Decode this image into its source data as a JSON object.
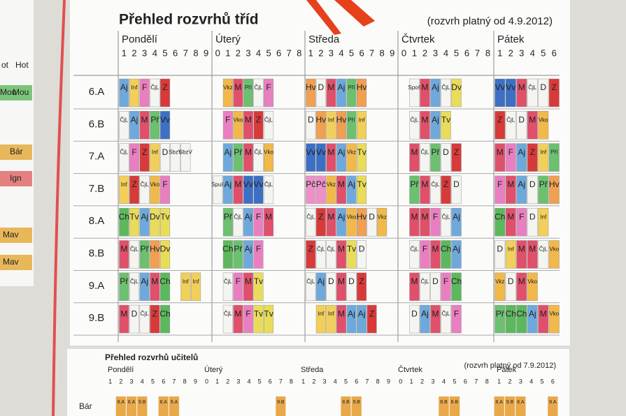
{
  "sheet": {
    "title": "Přehled rozvrhů tříd",
    "subtitle": "(rozvrh platný od 4.9.2012)",
    "days": [
      {
        "name": "Pondělí",
        "periods": [
          "1",
          "2",
          "3",
          "4",
          "5",
          "6",
          "7",
          "8",
          "9"
        ]
      },
      {
        "name": "Úterý",
        "periods": [
          "0",
          "1",
          "2",
          "3",
          "4",
          "5",
          "6",
          "7",
          "8"
        ]
      },
      {
        "name": "Středa",
        "periods": [
          "1",
          "2",
          "3",
          "4",
          "5",
          "6",
          "7",
          "8",
          "9"
        ]
      },
      {
        "name": "Čtvrtek",
        "periods": [
          "0",
          "1",
          "2",
          "3",
          "4",
          "5",
          "6",
          "7",
          "8"
        ]
      },
      {
        "name": "Pátek",
        "periods": [
          "1",
          "2",
          "3",
          "4",
          "5",
          "6"
        ]
      }
    ],
    "rows": [
      {
        "class": "6.A",
        "days": [
          [
            "Aj",
            "Inf",
            "F",
            "ČjL",
            "Z",
            null,
            null,
            null,
            null
          ],
          [
            null,
            "Vkz",
            "M",
            "Pří",
            "ČjL",
            "F",
            null,
            null,
            null
          ],
          [
            "Hv",
            "D",
            "M",
            "Aj",
            "Pří",
            "Hv",
            null,
            null,
            null
          ],
          [
            null,
            "Spoš",
            "M",
            "Aj",
            "ČjL",
            "Dv",
            null,
            null,
            null
          ],
          [
            "Vv",
            "Vv",
            "M",
            "ČjL",
            "D",
            "Z"
          ]
        ]
      },
      {
        "class": "6.B",
        "days": [
          [
            "ČjL",
            "Aj",
            "M",
            "Př",
            "Vv",
            null,
            null,
            null,
            null
          ],
          [
            null,
            "F",
            "Vko",
            "M",
            "Z",
            "ČjL",
            null,
            null,
            null
          ],
          [
            "D",
            "Hv",
            "Inf",
            "Hv",
            "Pří",
            "Inf",
            null,
            null,
            null
          ],
          [
            null,
            "ČjL",
            "M",
            "Aj",
            "Tv",
            null,
            null,
            null,
            null
          ],
          [
            "Z",
            "ČjL",
            "D",
            "M",
            "Vko",
            null
          ]
        ]
      },
      {
        "class": "7.A",
        "days": [
          [
            "ČjL",
            "F",
            "Z",
            "Inf",
            "D",
            "SbzV",
            "SbzV",
            null,
            null
          ],
          [
            null,
            "Aj",
            "Př",
            "M",
            "ČjL",
            "Vko",
            null,
            null,
            null
          ],
          [
            "Vv",
            "Vv",
            "M",
            "Aj",
            "Vkz",
            "Tv",
            null,
            null,
            null
          ],
          [
            null,
            "M",
            "ČjL",
            "Př",
            "D",
            "Z",
            null,
            null,
            null
          ],
          [
            "M",
            "F",
            "Aj",
            "Z",
            "Inf",
            "Pří"
          ]
        ]
      },
      {
        "class": "7.B",
        "days": [
          [
            "Inf",
            "Z",
            "ČjL",
            "Vko",
            "F",
            null,
            null,
            null,
            null
          ],
          [
            "Spuš",
            "Aj",
            "M",
            "Vv",
            "Vv",
            "ČjL",
            null,
            null,
            null
          ],
          [
            "Pč",
            "Pč",
            "Vkz",
            "M",
            "Aj",
            "Tv",
            null,
            null,
            null
          ],
          [
            null,
            "Př",
            "M",
            "ČjL",
            "Z",
            "D",
            null,
            null,
            null
          ],
          [
            "F",
            "M",
            "Aj",
            "D",
            "Př",
            "Hv"
          ]
        ]
      },
      {
        "class": "8.A",
        "days": [
          [
            "Ch",
            "Tv",
            "Aj",
            "Dv",
            "Tv",
            null,
            null,
            null,
            null
          ],
          [
            null,
            "Př",
            "ČjL",
            "Aj",
            "F",
            "M",
            null,
            null,
            null
          ],
          [
            "ČjL",
            "Z",
            "M",
            "Aj",
            "Vko",
            "Hv",
            "D",
            "Vkz",
            null
          ],
          [
            null,
            "M",
            "M",
            "F",
            "ČjL",
            "Aj",
            null,
            null,
            null
          ],
          [
            "Ch",
            "M",
            "F",
            "D",
            "Inf",
            null
          ]
        ]
      },
      {
        "class": "8.B",
        "days": [
          [
            "M",
            "ČjL",
            "Př",
            "Hv",
            "Dv",
            null,
            null,
            null,
            null
          ],
          [
            null,
            "Ch",
            "Př",
            "Aj",
            "F",
            null,
            null,
            null,
            null
          ],
          [
            "Z",
            "ČjL",
            "ČjL",
            "M",
            "Tv",
            "D",
            null,
            null,
            null
          ],
          [
            null,
            "ČjL",
            "F",
            "M",
            "Ch",
            "Aj",
            null,
            null,
            null
          ],
          [
            "D",
            "Inf",
            "M",
            "M",
            "ČjL",
            "Vko"
          ]
        ]
      },
      {
        "class": "9.A",
        "days": [
          [
            "Př",
            "ČjL",
            "Aj",
            "M",
            "Ch",
            null,
            "Inf",
            "Inf",
            null
          ],
          [
            null,
            "ČjL",
            "F",
            "M",
            "Tv",
            null,
            null,
            null,
            null
          ],
          [
            "ČjL",
            "Aj",
            "D",
            "M",
            "D",
            "Z",
            null,
            null,
            null
          ],
          [
            null,
            "M",
            "ČjL",
            "D",
            "F",
            "Ch",
            null,
            null,
            null
          ],
          [
            "Vkz",
            "D",
            "M",
            "Vko",
            null,
            null
          ]
        ]
      },
      {
        "class": "9.B",
        "days": [
          [
            "M",
            "D",
            "ČjL",
            "Z",
            "Ch",
            null,
            null,
            null,
            null
          ],
          [
            null,
            "ČjL",
            "M",
            "F",
            "Tv",
            "Tv",
            null,
            null,
            null
          ],
          [
            null,
            "Inf",
            "Inf",
            "M",
            "Aj",
            "Aj",
            "Z",
            null,
            null
          ],
          [
            null,
            "D",
            "Aj",
            "M",
            "ČjL",
            "F",
            null,
            null,
            null
          ],
          [
            "Př",
            "Ch",
            "Ch",
            "Aj",
            "M",
            "Vko"
          ]
        ]
      }
    ],
    "subject_colors": {
      "M": "#e0506a",
      "Z": "#d83a3a",
      "F": "#e97fc0",
      "Aj": "#6fa9dc",
      "ČjL": "#f4f4f0",
      "Inf": "#f1cf5a",
      "Ch": "#5cb85c",
      "Tv": "#e9dc5a",
      "Dv": "#e9dc5a",
      "Vv": "#3d6fc4",
      "Hv": "#f0a050",
      "D": "#f4f4f0",
      "Pří": "#6cc070",
      "Př": "#6cc070",
      "Vkz": "#f1b84a",
      "Vko": "#f1b84a",
      "Pč": "#ee90c8",
      "Spoš": "#f4f4f0",
      "Spuš": "#f4f4f0",
      "SbzV": "#f4f4f0"
    }
  },
  "teacher_sheet": {
    "title": "Přehled rozvrhů učitelů",
    "subtitle": "(rozvrh platný od 7.9.2012)",
    "days": [
      {
        "name": "Pondělí",
        "periods": [
          "1",
          "2",
          "3",
          "4",
          "5",
          "6",
          "7",
          "8",
          "9"
        ]
      },
      {
        "name": "Úterý",
        "periods": [
          "0",
          "1",
          "2",
          "3",
          "4",
          "5",
          "6",
          "7",
          "8"
        ]
      },
      {
        "name": "Středa",
        "periods": [
          "1",
          "2",
          "3",
          "4",
          "5",
          "6",
          "7",
          "8",
          "9"
        ]
      },
      {
        "name": "Čtvrtek",
        "periods": [
          "0",
          "1",
          "2",
          "3",
          "4",
          "5",
          "6",
          "7",
          "8"
        ]
      },
      {
        "name": "Pátek",
        "periods": [
          "1",
          "2",
          "3",
          "4",
          "5",
          "6"
        ]
      }
    ],
    "rows": [
      {
        "teacher": "Bár",
        "days": [
          [
            null,
            "8.A",
            "8.A",
            "9.B",
            null,
            "8.A",
            "9.A",
            null,
            null
          ],
          [
            null,
            null,
            null,
            null,
            null,
            null,
            null,
            "9.B",
            null
          ],
          [
            null,
            null,
            null,
            null,
            "8.B",
            "9.B",
            null,
            null,
            null
          ],
          [
            null,
            null,
            null,
            null,
            "8.B",
            "8.B",
            null,
            null,
            null
          ],
          [
            "8.A",
            "9.B",
            "8.A",
            null,
            null,
            "9.A"
          ]
        ]
      }
    ]
  },
  "left_sheet": {
    "labels": [
      "ot",
      "Hot",
      "Mou",
      "Mou",
      "Bár",
      "Ign",
      "Mav",
      "Mav"
    ]
  }
}
